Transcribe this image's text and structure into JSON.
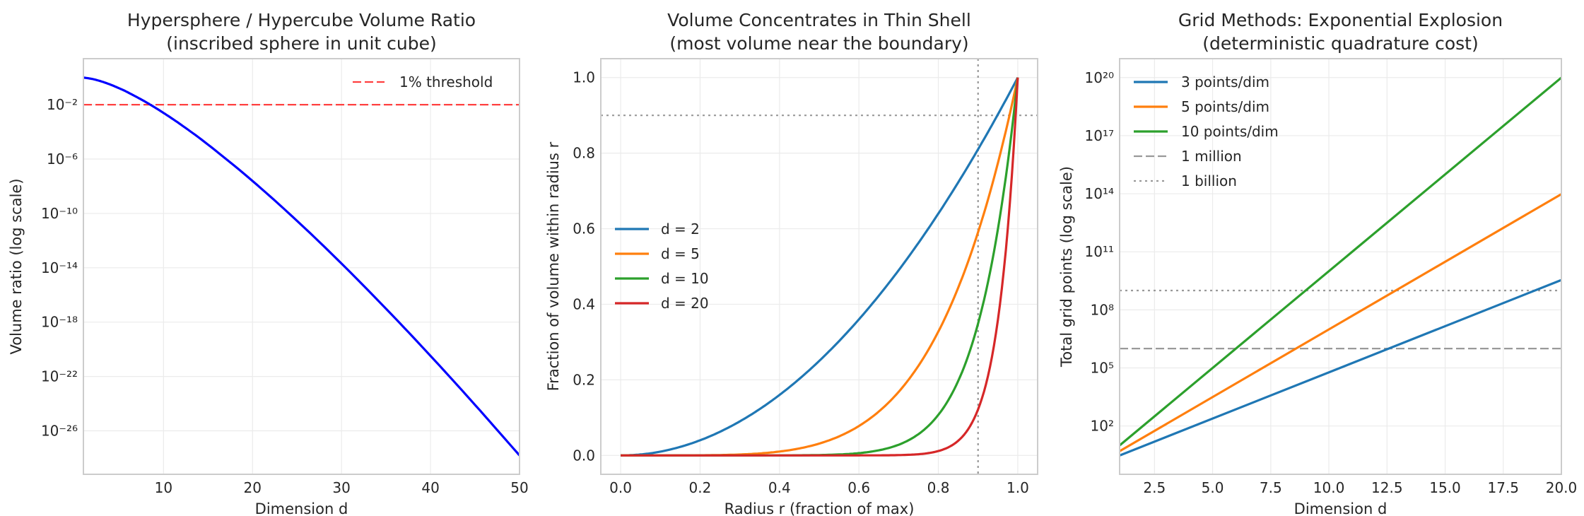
{
  "chart_data": [
    {
      "type": "line",
      "title_lines": [
        "Hypersphere / Hypercube Volume Ratio",
        "(inscribed sphere in unit cube)"
      ],
      "xlabel": "Dimension d",
      "ylabel": "Volume ratio (log scale)",
      "xscale": "linear",
      "yscale": "log",
      "xlim": [
        1,
        50
      ],
      "ylim": [
        6.3e-30,
        24.5
      ],
      "grid": true,
      "legend": "upper right",
      "xticks": [
        10,
        20,
        30,
        40,
        50
      ],
      "xtick_labels": [
        "10",
        "20",
        "30",
        "40",
        "50"
      ],
      "yticks": [
        0.01,
        1e-06,
        1e-10,
        1e-14,
        1e-18,
        1e-22,
        1e-26
      ],
      "ytick_labels": [
        "10⁻²",
        "10⁻⁶",
        "10⁻¹⁰",
        "10⁻¹⁴",
        "10⁻¹⁸",
        "10⁻²²",
        "10⁻²⁶"
      ],
      "series": [
        {
          "color": "#0000ff",
          "style": "solid",
          "x": [
            1,
            2,
            3,
            4,
            5,
            6,
            8,
            10,
            12,
            15,
            20,
            25,
            30,
            35,
            40,
            45,
            50
          ],
          "y": [
            1.0,
            0.7854,
            0.5236,
            0.3084,
            0.1645,
            0.0807,
            0.01585,
            0.00249,
            0.000326,
            1.16e-05,
            2.46e-08,
            2.85e-11,
            2.04e-14,
            9.74e-18,
            3.28e-21,
            8.13e-25,
            1.54e-28
          ]
        }
      ],
      "reference_lines": [
        {
          "orientation": "horizontal",
          "value": 0.01,
          "label": "1% threshold",
          "color": "#ff4040",
          "style": "dashed",
          "in_legend": true
        }
      ]
    },
    {
      "type": "line",
      "title_lines": [
        "Volume Concentrates in Thin Shell",
        "(most volume near the boundary)"
      ],
      "xlabel": "Radius r (fraction of max)",
      "ylabel": "Fraction of volume within radius r",
      "xscale": "linear",
      "yscale": "linear",
      "xlim": [
        -0.05,
        1.05
      ],
      "ylim": [
        -0.05,
        1.05
      ],
      "grid": true,
      "legend": "center left",
      "xticks": [
        0,
        0.2,
        0.4,
        0.6,
        0.8,
        1.0
      ],
      "xtick_labels": [
        "0.0",
        "0.2",
        "0.4",
        "0.6",
        "0.8",
        "1.0"
      ],
      "yticks": [
        0,
        0.2,
        0.4,
        0.6,
        0.8,
        1.0
      ],
      "ytick_labels": [
        "0.0",
        "0.2",
        "0.4",
        "0.6",
        "0.8",
        "1.0"
      ],
      "series": [
        {
          "name": "d = 2",
          "exponent": 2,
          "color": "#1f77b4",
          "style": "solid",
          "x": [
            0,
            0.2,
            0.4,
            0.6,
            0.8,
            0.9,
            1.0
          ],
          "y": [
            0,
            0.04,
            0.16,
            0.36,
            0.64,
            0.81,
            1.0
          ]
        },
        {
          "name": "d = 5",
          "exponent": 5,
          "color": "#ff7f0e",
          "style": "solid",
          "x": [
            0,
            0.2,
            0.4,
            0.6,
            0.8,
            0.9,
            1.0
          ],
          "y": [
            0,
            0.00032,
            0.01024,
            0.07776,
            0.32768,
            0.59049,
            1.0
          ]
        },
        {
          "name": "d = 10",
          "exponent": 10,
          "color": "#2ca02c",
          "style": "solid",
          "x": [
            0,
            0.2,
            0.4,
            0.6,
            0.8,
            0.9,
            1.0
          ],
          "y": [
            0,
            1e-07,
            0.000105,
            0.00605,
            0.10737,
            0.34868,
            1.0
          ]
        },
        {
          "name": "d = 20",
          "exponent": 20,
          "color": "#d62728",
          "style": "solid",
          "x": [
            0,
            0.2,
            0.4,
            0.6,
            0.8,
            0.9,
            1.0
          ],
          "y": [
            0,
            1e-14,
            1.1e-08,
            3.66e-05,
            0.01153,
            0.12158,
            1.0
          ]
        }
      ],
      "reference_lines": [
        {
          "orientation": "vertical",
          "value": 0.9,
          "color": "#999999",
          "style": "dotted",
          "in_legend": false
        },
        {
          "orientation": "horizontal",
          "value": 0.9,
          "color": "#999999",
          "style": "dotted",
          "in_legend": false
        }
      ]
    },
    {
      "type": "line",
      "title_lines": [
        "Grid Methods: Exponential Explosion",
        "(deterministic quadrature cost)"
      ],
      "xlabel": "Dimension d",
      "ylabel": "Total grid points (log scale)",
      "xscale": "linear",
      "yscale": "log",
      "xlim": [
        1,
        20
      ],
      "ylim": [
        0.32,
        9.5e+20
      ],
      "grid": true,
      "legend": "upper left",
      "xticks": [
        2.5,
        5,
        7.5,
        10,
        12.5,
        15,
        17.5,
        20
      ],
      "xtick_labels": [
        "2.5",
        "5.0",
        "7.5",
        "10.0",
        "12.5",
        "15.0",
        "17.5",
        "20.0"
      ],
      "yticks": [
        100.0,
        100000.0,
        100000000.0,
        100000000000.0,
        100000000000000.0,
        1e+17,
        1e+20
      ],
      "ytick_labels": [
        "10²",
        "10⁵",
        "10⁸",
        "10¹¹",
        "10¹⁴",
        "10¹⁷",
        "10²⁰"
      ],
      "series": [
        {
          "name": "3 points/dim",
          "color": "#1f77b4",
          "style": "solid",
          "x": [
            1,
            20
          ],
          "y": [
            3,
            3486784401
          ]
        },
        {
          "name": "5 points/dim",
          "color": "#ff7f0e",
          "style": "solid",
          "x": [
            1,
            20
          ],
          "y": [
            5,
            95367431640625
          ]
        },
        {
          "name": "10 points/dim",
          "color": "#2ca02c",
          "style": "solid",
          "x": [
            1,
            20
          ],
          "y": [
            10,
            1e+20
          ]
        }
      ],
      "reference_lines": [
        {
          "orientation": "horizontal",
          "value": 1000000.0,
          "label": "1 million",
          "color": "#999999",
          "style": "dashed",
          "in_legend": true
        },
        {
          "orientation": "horizontal",
          "value": 1000000000.0,
          "label": "1 billion",
          "color": "#999999",
          "style": "dotted",
          "in_legend": true
        }
      ]
    }
  ]
}
